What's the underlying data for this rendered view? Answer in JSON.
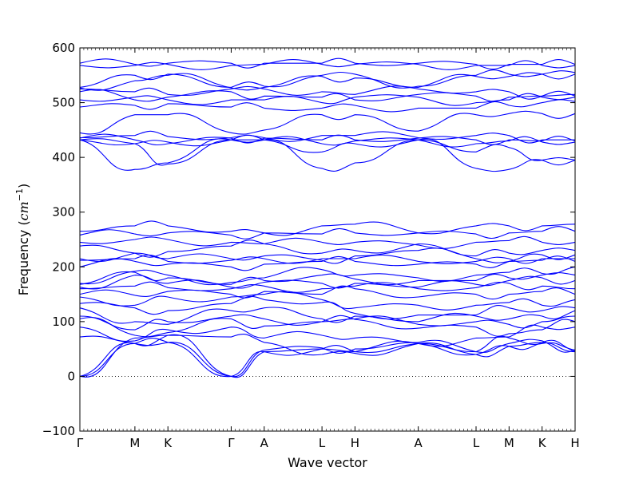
{
  "chart_data": {
    "type": "line",
    "title": "",
    "xlabel": "Wave vector",
    "ylabel": {
      "text": "Frequency (",
      "unit_base": "cm",
      "unit_exp": "−1",
      "close": ")"
    },
    "ylim": [
      -100,
      600
    ],
    "yticks": [
      -100,
      0,
      100,
      200,
      300,
      400,
      500,
      600
    ],
    "xlim": [
      0,
      9.0
    ],
    "xticks": [
      {
        "label": "Γ",
        "x": 0.0
      },
      {
        "label": "M",
        "x": 1.0
      },
      {
        "label": "K",
        "x": 1.6
      },
      {
        "label": "Γ",
        "x": 2.75
      },
      {
        "label": "A",
        "x": 3.35
      },
      {
        "label": "L",
        "x": 4.4
      },
      {
        "label": "H",
        "x": 5.0
      },
      {
        "label": "A",
        "x": 6.15
      },
      {
        "label": "L",
        "x": 7.2
      },
      {
        "label": "M",
        "x": 7.8
      },
      {
        "label": "K",
        "x": 8.4
      },
      {
        "label": "H",
        "x": 9.0
      }
    ],
    "zero_line": {
      "y": 0,
      "style": "dotted"
    },
    "grid": false,
    "line_color": "#0000ff",
    "series": [
      {
        "values": [
          0,
          60,
          62,
          0,
          45,
          50,
          45,
          60,
          40,
          55,
          62,
          45
        ]
      },
      {
        "values": [
          0,
          60,
          62,
          0,
          45,
          50,
          45,
          60,
          40,
          55,
          62,
          45
        ]
      },
      {
        "values": [
          0,
          70,
          75,
          0,
          48,
          52,
          50,
          62,
          45,
          60,
          65,
          48
        ]
      },
      {
        "values": [
          72,
          60,
          75,
          72,
          62,
          40,
          42,
          60,
          45,
          70,
          60,
          48
        ]
      },
      {
        "values": [
          90,
          65,
          85,
          90,
          70,
          75,
          70,
          60,
          70,
          72,
          90,
          90
        ]
      },
      {
        "values": [
          105,
          75,
          80,
          105,
          92,
          100,
          104,
          88,
          90,
          78,
          85,
          100
        ]
      },
      {
        "values": [
          110,
          85,
          100,
          110,
          105,
          100,
          105,
          95,
          100,
          95,
          100,
          110
        ]
      },
      {
        "values": [
          125,
          100,
          95,
          120,
          125,
          105,
          110,
          100,
          110,
          105,
          110,
          120
        ]
      },
      {
        "values": [
          133,
          125,
          120,
          133,
          140,
          135,
          115,
          112,
          112,
          125,
          120,
          125
        ]
      },
      {
        "values": [
          145,
          130,
          145,
          145,
          150,
          140,
          125,
          130,
          130,
          135,
          130,
          140
        ]
      },
      {
        "values": [
          150,
          148,
          155,
          150,
          155,
          150,
          160,
          145,
          150,
          150,
          155,
          150
        ]
      },
      {
        "values": [
          160,
          165,
          162,
          160,
          165,
          160,
          165,
          160,
          162,
          170,
          165,
          160
        ]
      },
      {
        "values": [
          163,
          185,
          170,
          163,
          172,
          170,
          170,
          163,
          168,
          175,
          180,
          175
        ]
      },
      {
        "values": [
          168,
          190,
          180,
          168,
          175,
          185,
          178,
          175,
          175,
          180,
          185,
          185
        ]
      },
      {
        "values": [
          170,
          192,
          185,
          172,
          180,
          195,
          185,
          180,
          185,
          190,
          188,
          200
        ]
      },
      {
        "values": [
          200,
          210,
          205,
          200,
          205,
          210,
          210,
          205,
          205,
          210,
          212,
          210
        ]
      },
      {
        "values": [
          212,
          215,
          210,
          212,
          215,
          215,
          215,
          210,
          210,
          215,
          215,
          215
        ]
      },
      {
        "values": [
          215,
          225,
          215,
          215,
          220,
          212,
          220,
          230,
          215,
          210,
          222,
          222
        ]
      },
      {
        "values": [
          238,
          225,
          228,
          238,
          242,
          225,
          230,
          242,
          220,
          225,
          230,
          230
        ]
      },
      {
        "values": [
          245,
          250,
          250,
          245,
          242,
          245,
          245,
          240,
          245,
          248,
          245,
          245
        ]
      },
      {
        "values": [
          258,
          260,
          262,
          258,
          262,
          260,
          262,
          262,
          260,
          262,
          265,
          265
        ]
      },
      {
        "values": [
          265,
          275,
          275,
          265,
          262,
          275,
          278,
          262,
          275,
          275,
          275,
          278
        ]
      },
      {
        "values": [
          432,
          378,
          390,
          432,
          432,
          380,
          390,
          432,
          380,
          378,
          395,
          395
        ]
      },
      {
        "values": [
          432,
          425,
          388,
          432,
          432,
          410,
          425,
          432,
          410,
          418,
          395,
          395
        ]
      },
      {
        "values": [
          432,
          425,
          428,
          432,
          432,
          425,
          430,
          432,
          425,
          430,
          428,
          428
        ]
      },
      {
        "values": [
          435,
          432,
          425,
          435,
          435,
          432,
          432,
          435,
          432,
          432,
          430,
          430
        ]
      },
      {
        "values": [
          436,
          440,
          438,
          436,
          436,
          440,
          440,
          436,
          440,
          440,
          432,
          432
        ]
      },
      {
        "values": [
          445,
          478,
          478,
          445,
          450,
          478,
          478,
          448,
          478,
          480,
          480,
          480
        ]
      },
      {
        "values": [
          492,
          495,
          498,
          492,
          490,
          490,
          495,
          490,
          490,
          495,
          500,
          502
        ]
      },
      {
        "values": [
          505,
          510,
          505,
          505,
          505,
          500,
          510,
          510,
          500,
          505,
          510,
          510
        ]
      },
      {
        "values": [
          520,
          505,
          510,
          520,
          512,
          510,
          505,
          515,
          512,
          510,
          512,
          512
        ]
      },
      {
        "values": [
          525,
          520,
          515,
          525,
          525,
          520,
          515,
          525,
          520,
          520,
          512,
          515
        ]
      },
      {
        "values": [
          527,
          540,
          550,
          527,
          528,
          548,
          545,
          528,
          548,
          548,
          552,
          552
        ]
      },
      {
        "values": [
          528,
          550,
          552,
          528,
          530,
          550,
          552,
          530,
          550,
          552,
          552,
          555
        ]
      },
      {
        "values": [
          568,
          568,
          570,
          568,
          570,
          570,
          570,
          570,
          568,
          568,
          568,
          568
        ]
      },
      {
        "values": [
          572,
          570,
          572,
          572,
          572,
          572,
          572,
          572,
          570,
          570,
          570,
          570
        ]
      }
    ]
  }
}
